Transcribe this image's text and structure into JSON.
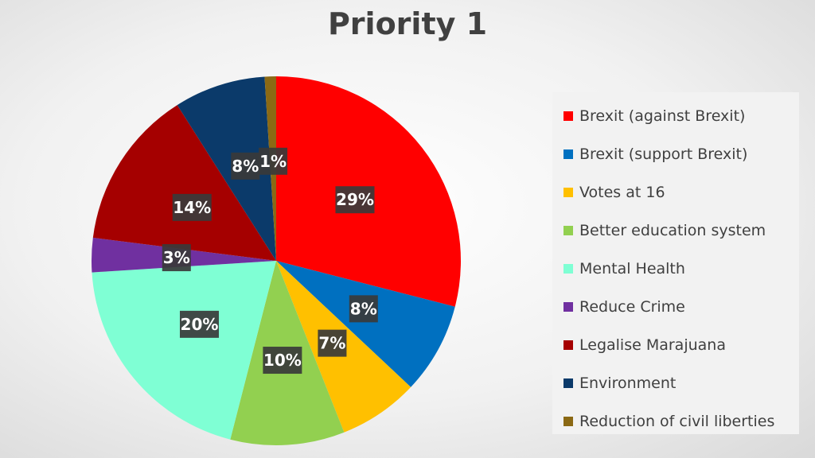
{
  "chart_data": {
    "type": "pie",
    "title": "Priority 1",
    "legend_position": "right",
    "slices": [
      {
        "label": "Brexit (against Brexit)",
        "value": 29,
        "display": "29%",
        "color": "#ff0000"
      },
      {
        "label": "Brexit (support Brexit)",
        "value": 8,
        "display": "8%",
        "color": "#0070c0"
      },
      {
        "label": "Votes at 16",
        "value": 7,
        "display": "7%",
        "color": "#ffc000"
      },
      {
        "label": "Better education system",
        "value": 10,
        "display": "10%",
        "color": "#92d050"
      },
      {
        "label": "Mental Health",
        "value": 20,
        "display": "20%",
        "color": "#7fffd4"
      },
      {
        "label": "Reduce Crime",
        "value": 3,
        "display": "3%",
        "color": "#7030a0"
      },
      {
        "label": "Legalise Marajuana",
        "value": 14,
        "display": "14%",
        "color": "#a50000"
      },
      {
        "label": "Environment",
        "value": 8,
        "display": "8%",
        "color": "#0b3a6a"
      },
      {
        "label": "Reduction of civil liberties",
        "value": 1,
        "display": "1%",
        "color": "#8b6914"
      }
    ]
  }
}
